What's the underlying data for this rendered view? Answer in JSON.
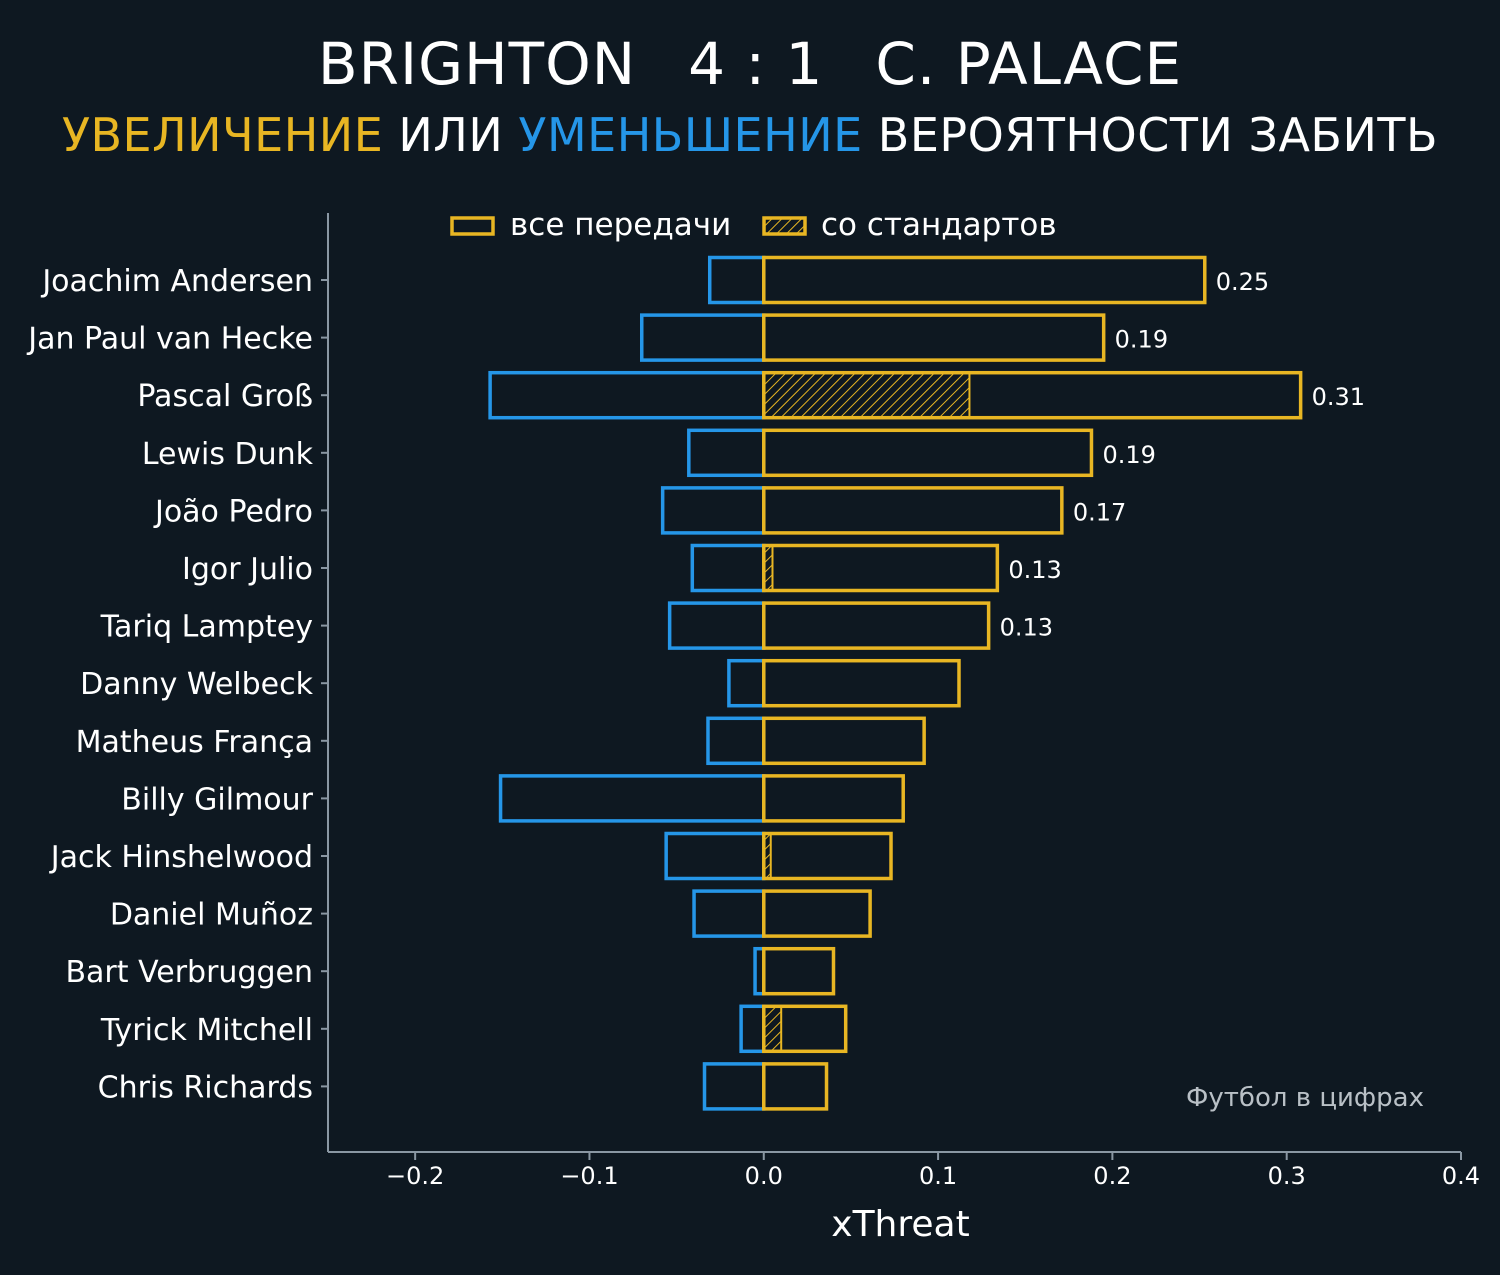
{
  "header": {
    "home_team": "BRIGHTON",
    "score": "4 : 1",
    "away_team": "C. PALACE",
    "subtitle_part1": "УВЕЛИЧЕНИЕ",
    "subtitle_part2": " ИЛИ ",
    "subtitle_part3": "УМЕНЬШЕНИЕ",
    "subtitle_part4": " ВЕРОЯТНОСТИ ЗАБИТЬ"
  },
  "colors": {
    "background": "#0e1821",
    "increase": "#e8b623",
    "decrease": "#2596e8",
    "axis": "#8a97a3",
    "text": "#ffffff",
    "watermark": "#b9c0c6"
  },
  "watermark": "Футбол в цифрах",
  "chart_data": {
    "type": "bar",
    "orientation": "horizontal",
    "xlabel": "xThreat",
    "xlim": [
      -0.25,
      0.4
    ],
    "xticks": [
      -0.2,
      -0.1,
      0.0,
      0.1,
      0.2,
      0.3,
      0.4
    ],
    "xtick_labels": [
      "−0.2",
      "−0.1",
      "0.0",
      "0.1",
      "0.2",
      "0.3",
      "0.4"
    ],
    "legend": {
      "placement": "top",
      "entries": [
        "все передачи",
        "со стандартов"
      ]
    },
    "categories": [
      "Joachim Andersen",
      "Jan Paul van Hecke",
      "Pascal Groß",
      "Lewis Dunk",
      "João Pedro",
      "Igor Julio",
      "Tariq Lamptey",
      "Danny Welbeck",
      "Matheus França",
      "Billy Gilmour",
      "Jack Hinshelwood",
      "Daniel Muñoz",
      "Bart Verbruggen",
      "Tyrick Mitchell",
      "Chris Richards"
    ],
    "series": [
      {
        "role": "increase",
        "values": [
          0.253,
          0.195,
          0.308,
          0.188,
          0.171,
          0.134,
          0.129,
          0.112,
          0.092,
          0.08,
          0.073,
          0.061,
          0.04,
          0.047,
          0.036
        ]
      },
      {
        "role": "decrease",
        "values": [
          -0.031,
          -0.07,
          -0.157,
          -0.043,
          -0.058,
          -0.041,
          -0.054,
          -0.02,
          -0.032,
          -0.151,
          -0.056,
          -0.04,
          -0.005,
          -0.013,
          -0.034
        ]
      },
      {
        "role": "set_pieces_increase",
        "values": [
          0,
          0,
          0.118,
          0,
          0,
          0.005,
          0,
          0,
          0,
          0,
          0.004,
          0,
          0,
          0.01,
          0
        ]
      }
    ],
    "data_labels": [
      "0.25",
      "0.19",
      "0.31",
      "0.19",
      "0.17",
      "0.13",
      "0.13",
      "",
      "",
      "",
      "",
      "",
      "",
      "",
      ""
    ]
  }
}
